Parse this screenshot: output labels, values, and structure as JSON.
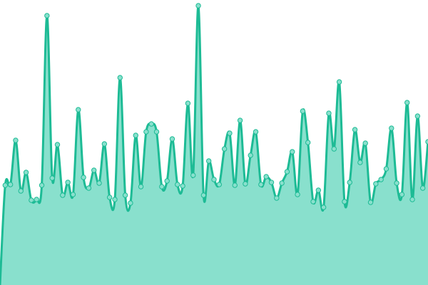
{
  "chart_data": {
    "type": "area",
    "title": "",
    "xlabel": "",
    "ylabel": "",
    "ylim": [
      0,
      400
    ],
    "grid": false,
    "legend": "none",
    "curve": "smooth",
    "markers": true,
    "colors": {
      "line": "#1dbb95",
      "fill": "#89e0cd",
      "marker_fill": "#89e0cd",
      "marker_stroke": "#1dbb95"
    },
    "series": [
      {
        "values": [
          0,
          140,
          141,
          203,
          132,
          158,
          119,
          120,
          140,
          378,
          150,
          197,
          126,
          144,
          127,
          246,
          151,
          136,
          161,
          143,
          198,
          123,
          120,
          291,
          126,
          115,
          210,
          138,
          215,
          226,
          215,
          138,
          146,
          205,
          141,
          139,
          255,
          154,
          392,
          126,
          174,
          148,
          141,
          191,
          213,
          140,
          231,
          142,
          182,
          215,
          141,
          152,
          144,
          122,
          143,
          159,
          187,
          127,
          244,
          200,
          117,
          133,
          109,
          241,
          191,
          285,
          117,
          144,
          218,
          172,
          199,
          116,
          142,
          148,
          163,
          220,
          143,
          127,
          256,
          120,
          237,
          136,
          201
        ]
      }
    ]
  }
}
